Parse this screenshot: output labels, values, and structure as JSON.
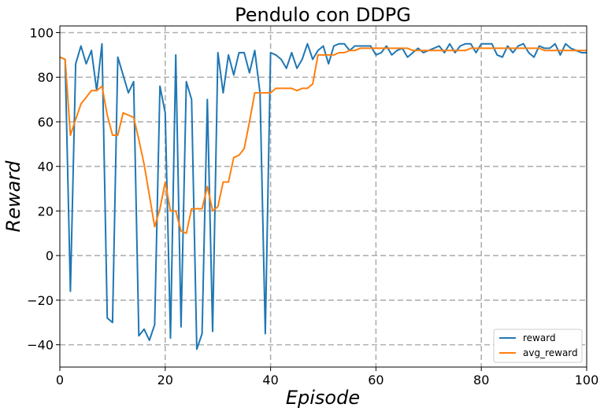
{
  "chart_data": {
    "type": "line",
    "title": "Pendulo con DDPG",
    "xlabel": "Episode",
    "ylabel": "Reward",
    "xlim": [
      0,
      100
    ],
    "ylim": [
      -50,
      103
    ],
    "xticks": [
      0,
      20,
      40,
      60,
      80,
      100
    ],
    "yticks": [
      -40,
      -20,
      0,
      20,
      40,
      60,
      80,
      100
    ],
    "x_tick_labels": [
      "0",
      "20",
      "40",
      "60",
      "80",
      "100"
    ],
    "y_tick_labels": [
      "−40",
      "−20",
      "0",
      "20",
      "40",
      "60",
      "80",
      "100"
    ],
    "grid": true,
    "grid_style": "dashed",
    "legend_position": "lower-right",
    "series": [
      {
        "name": "reward",
        "color": "#1f77b4",
        "x": [
          0,
          1,
          2,
          3,
          4,
          5,
          6,
          7,
          8,
          9,
          10,
          11,
          12,
          13,
          14,
          15,
          16,
          17,
          18,
          19,
          20,
          21,
          22,
          23,
          24,
          25,
          26,
          27,
          28,
          29,
          30,
          31,
          32,
          33,
          34,
          35,
          36,
          37,
          38,
          39,
          40,
          41,
          42,
          43,
          44,
          45,
          46,
          47,
          48,
          49,
          50,
          51,
          52,
          53,
          54,
          55,
          56,
          57,
          58,
          59,
          60,
          61,
          62,
          63,
          64,
          65,
          66,
          67,
          68,
          69,
          70,
          71,
          72,
          73,
          74,
          75,
          76,
          77,
          78,
          79,
          80,
          81,
          82,
          83,
          84,
          85,
          86,
          87,
          88,
          89,
          90,
          91,
          92,
          93,
          94,
          95,
          96,
          97,
          98,
          99,
          100
        ],
        "y": [
          89,
          88,
          -16,
          86,
          94,
          86,
          92,
          74,
          95,
          -28,
          -30,
          89,
          81,
          73,
          78,
          -36,
          -33,
          -38,
          -31,
          76,
          64,
          -37,
          90,
          -32,
          78,
          70,
          -42,
          -35,
          70,
          -34,
          91,
          73,
          90,
          81,
          91,
          91,
          82,
          92,
          73,
          -35,
          91,
          90,
          88,
          84,
          91,
          84,
          88,
          95,
          88,
          92,
          94,
          86,
          94,
          95,
          95,
          92,
          94,
          94,
          94,
          94,
          90,
          91,
          94,
          90,
          92,
          93,
          89,
          91,
          93,
          91,
          92,
          93,
          94,
          91,
          95,
          91,
          94,
          95,
          95,
          91,
          95,
          95,
          95,
          90,
          89,
          94,
          91,
          94,
          95,
          91,
          89,
          94,
          93,
          93,
          95,
          90,
          95,
          93,
          92,
          91,
          91
        ]
      },
      {
        "name": "avg_reward",
        "color": "#ff7f0e",
        "x": [
          0,
          1,
          2,
          3,
          4,
          5,
          6,
          7,
          8,
          9,
          10,
          11,
          12,
          13,
          14,
          15,
          16,
          17,
          18,
          19,
          20,
          21,
          22,
          23,
          24,
          25,
          26,
          27,
          28,
          29,
          30,
          31,
          32,
          33,
          34,
          35,
          36,
          37,
          38,
          39,
          40,
          41,
          42,
          43,
          44,
          45,
          46,
          47,
          48,
          49,
          50,
          51,
          52,
          53,
          54,
          55,
          56,
          57,
          58,
          59,
          60,
          61,
          62,
          63,
          64,
          65,
          66,
          67,
          68,
          69,
          70,
          71,
          72,
          73,
          74,
          75,
          76,
          77,
          78,
          79,
          80,
          81,
          82,
          83,
          84,
          85,
          86,
          87,
          88,
          89,
          90,
          91,
          92,
          93,
          94,
          95,
          96,
          97,
          98,
          99,
          100
        ],
        "y": [
          89,
          88,
          54,
          61,
          68,
          71,
          74,
          74,
          76,
          63,
          54,
          54,
          64,
          63,
          62,
          52,
          41,
          27,
          13,
          21,
          33,
          20,
          20,
          11,
          10,
          21,
          21,
          21,
          31,
          20,
          22,
          33,
          33,
          44,
          45,
          48,
          60,
          73,
          73,
          73,
          73,
          75,
          75,
          75,
          75,
          74,
          75,
          75,
          77,
          90,
          90,
          90,
          90,
          91,
          91,
          92,
          92,
          93,
          93,
          93,
          93,
          93,
          93,
          93,
          93,
          93,
          93,
          92,
          92,
          92,
          92,
          92,
          92,
          92,
          92,
          92,
          92,
          92,
          93,
          93,
          93,
          93,
          93,
          93,
          93,
          93,
          93,
          93,
          93,
          93,
          93,
          93,
          92,
          92,
          92,
          92,
          92,
          92,
          92,
          92,
          92
        ]
      }
    ]
  }
}
